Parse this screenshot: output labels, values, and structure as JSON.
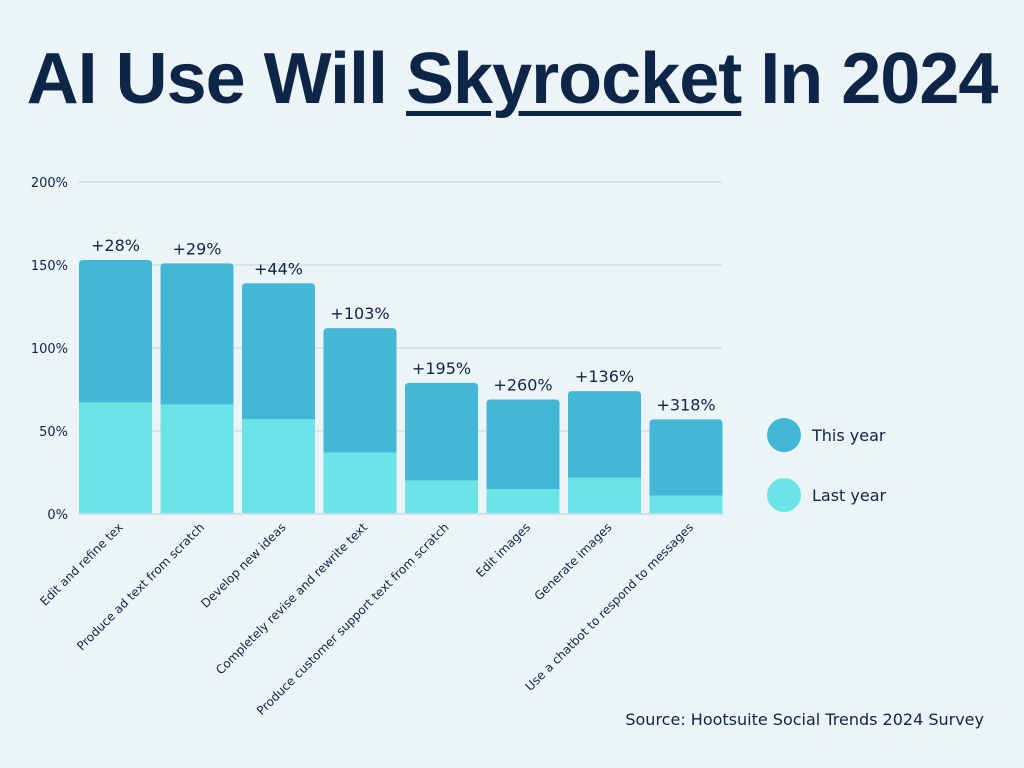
{
  "title": {
    "pre": "AI Use Will ",
    "emph": "Skyrocket",
    "post": " In 2024"
  },
  "source": "Source: Hootsuite Social Trends 2024 Survey",
  "colors": {
    "this_year": "#42b8d6",
    "last_year": "#6be4e8",
    "text": "#0d2547",
    "grid": "#d3dde4",
    "background": "#edf4f7"
  },
  "chart_data": {
    "type": "bar",
    "stacked": true,
    "categories": [
      "Edit and refine tex",
      "Produce ad text from scratch",
      "Develop new ideas",
      "Completely revise and rewrite text",
      "Produce customer support text from scratch",
      "Edit images",
      "Generate images",
      "Use a chatbot to respond to messages"
    ],
    "series": [
      {
        "name": "Last year",
        "values": [
          67,
          66,
          57,
          37,
          20,
          15,
          22,
          11
        ]
      },
      {
        "name": "This year",
        "values": [
          86,
          85,
          82,
          75,
          59,
          54,
          52,
          46
        ]
      }
    ],
    "data_labels": [
      "+28%",
      "+29%",
      "+44%",
      "+103%",
      "+195%",
      "+260%",
      "+136%",
      "+318%"
    ],
    "yticks": [
      "0%",
      "50%",
      "100%",
      "150%",
      "200%"
    ],
    "ylim": [
      0,
      200
    ],
    "grid": true,
    "legend": {
      "placement": "right",
      "entries": [
        "This year",
        "Last year"
      ]
    }
  }
}
